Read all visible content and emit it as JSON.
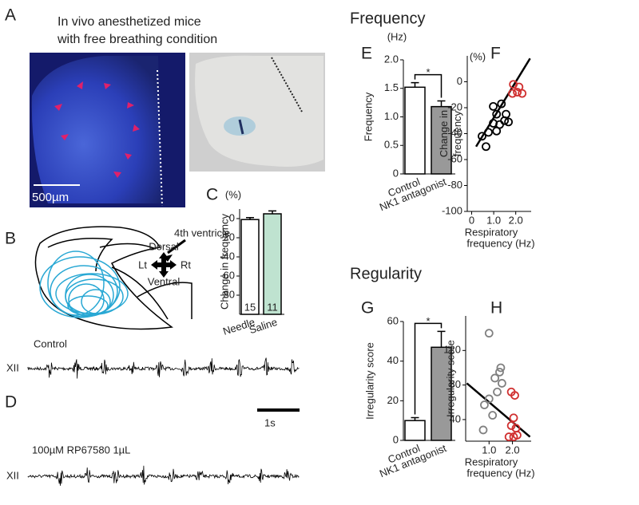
{
  "panels": [
    "A",
    "B",
    "C",
    "D",
    "E",
    "F",
    "G",
    "H"
  ],
  "section_titles": [
    "Frequency",
    "Regularity"
  ],
  "panel_a": {
    "caption": [
      "In vivo  anesthetized mice",
      "with free breathing condition"
    ],
    "scale_bar": "500µm"
  },
  "panel_b": {
    "ventricle": "4th ventricle",
    "dorsal": "Dorsal",
    "ventral": "Ventral",
    "left": "Lt",
    "right": "Rt"
  },
  "panel_d": {
    "trace_labels": [
      "Control",
      "100µM RP67580 1µL"
    ],
    "channel": "XII",
    "scale_bar": "1s"
  },
  "chart_data": [
    {
      "type": "bar",
      "ylabel": "Change in frequency",
      "yunit": "(%)",
      "categories": [
        "Needle",
        "Saline"
      ],
      "values": [
        -1,
        5
      ],
      "errors": [
        2,
        3
      ],
      "n": [
        15,
        11
      ],
      "colors": [
        "#ffffff",
        "#bfe3d0"
      ],
      "ylim": [
        -100,
        10
      ],
      "yticks": [
        0,
        -20,
        -40,
        -60,
        -80
      ]
    },
    {
      "type": "bar",
      "ylabel": "Frequency",
      "yunit": "(Hz)",
      "categories": [
        "Control",
        "NK1 antagonist"
      ],
      "values": [
        1.52,
        1.18
      ],
      "errors": [
        0.08,
        0.1
      ],
      "colors": [
        "#ffffff",
        "#999999"
      ],
      "ylim": [
        0,
        2
      ],
      "yticks": [
        0,
        0.5,
        {
          "value": 1,
          "label": "1.0"
        },
        1.5,
        {
          "value": 2,
          "label": "2.0"
        }
      ],
      "significance": "*"
    },
    {
      "type": "scatter",
      "ylabel": [
        "Change in",
        "frequency"
      ],
      "yunit": "(%)",
      "xlabel": [
        "Respiratory",
        "frequency (Hz)"
      ],
      "xlim": [
        -0.2,
        2.7
      ],
      "ylim": [
        -100,
        20
      ],
      "xticks": [
        0,
        {
          "value": 1,
          "label": "1.0"
        },
        {
          "value": 2,
          "label": "2.0"
        }
      ],
      "yticks": [
        0,
        -20,
        -40,
        -60,
        -80,
        -100
      ],
      "series": [
        {
          "color": "#000000",
          "x": [
            0.98,
            1.35,
            1.13,
            1.56,
            1.49,
            0.98,
            1.27,
            1.67,
            0.76,
            1.13,
            0.47,
            0.65
          ],
          "y": [
            -19,
            -17,
            -25,
            -25,
            -30,
            -32,
            -33,
            -31,
            -39,
            -38,
            -42,
            -50
          ]
        },
        {
          "color": "#d03030",
          "x": [
            1.89,
            2.15,
            2.07,
            2.29,
            1.85
          ],
          "y": [
            -2,
            -4,
            -8,
            -9,
            -9
          ]
        }
      ],
      "fit_line": {
        "x": [
          0.2,
          2.65
        ],
        "y": [
          -50,
          18
        ]
      }
    },
    {
      "type": "bar",
      "ylabel": "Irregularity score",
      "categories": [
        "Control",
        "NK1 antagonist"
      ],
      "values": [
        10,
        47
      ],
      "errors": [
        1.5,
        8
      ],
      "colors": [
        "#ffffff",
        "#999999"
      ],
      "ylim": [
        0,
        60
      ],
      "yticks": [
        0,
        20,
        40,
        60
      ],
      "significance": "*"
    },
    {
      "type": "scatter",
      "ylabel": [
        "Irregularity score"
      ],
      "xlabel": [
        "Respiratory",
        "frequency (Hz)"
      ],
      "xlim": [
        0,
        2.8
      ],
      "ylim": [
        15,
        160
      ],
      "xticks": [
        {
          "value": 1,
          "label": "1.0"
        },
        {
          "value": 2,
          "label": "2.0"
        }
      ],
      "yticks": [
        40,
        80,
        120
      ],
      "series": [
        {
          "color": "#808080",
          "x": [
            1.0,
            1.45,
            1.25,
            1.55,
            1.35,
            1.0,
            0.8,
            1.15,
            0.75,
            1.5
          ],
          "y": [
            140,
            95,
            88,
            82,
            72,
            64,
            57,
            45,
            28,
            100
          ]
        },
        {
          "color": "#d03030",
          "x": [
            1.95,
            2.1,
            2.05,
            1.95,
            1.85,
            2.05,
            2.2,
            2.15
          ],
          "y": [
            72,
            68,
            42,
            33,
            20,
            20,
            22,
            30
          ]
        }
      ],
      "fit_line": {
        "x": [
          0.05,
          2.75
        ],
        "y": [
          82,
          20
        ]
      }
    }
  ]
}
